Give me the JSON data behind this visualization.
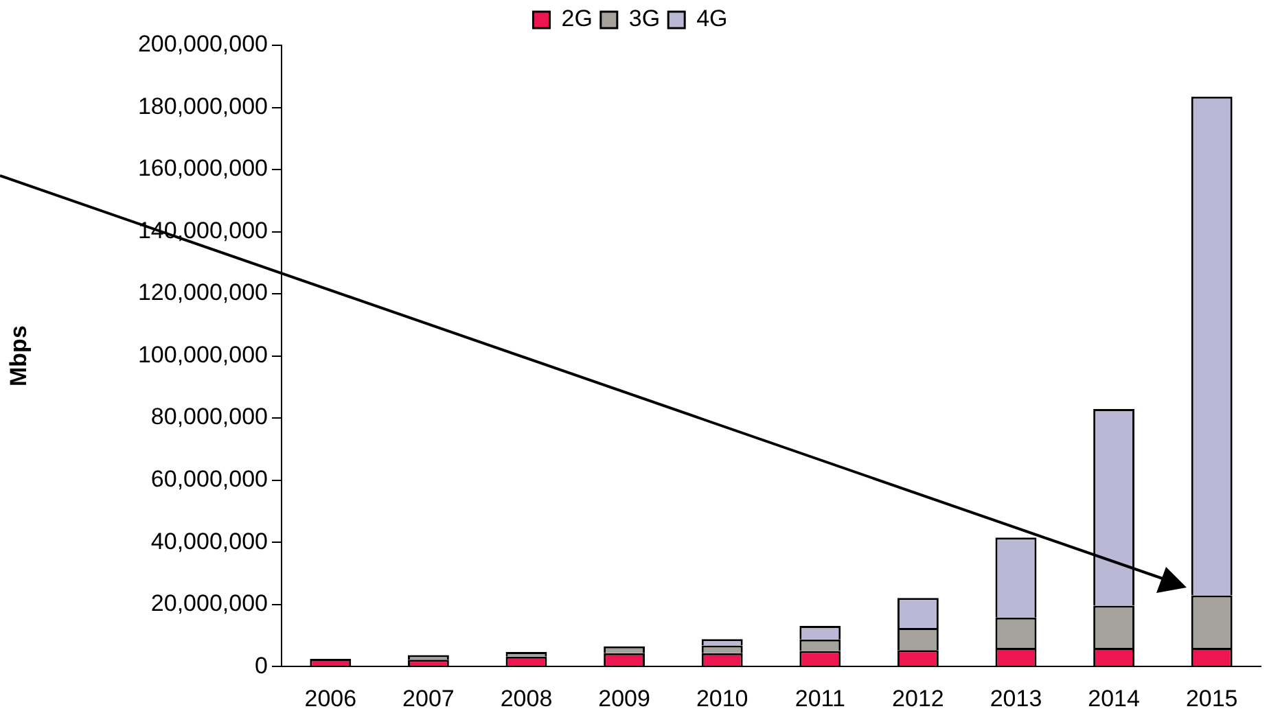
{
  "chart_data": {
    "type": "bar",
    "stacked": true,
    "ylabel": "Mbps",
    "categories": [
      "2006",
      "2007",
      "2008",
      "2009",
      "2010",
      "2011",
      "2012",
      "2013",
      "2014",
      "2015"
    ],
    "series": [
      {
        "name": "2G",
        "color": "#ee1651",
        "values": [
          2500000,
          2200000,
          3200000,
          4300000,
          4300000,
          5000000,
          5300000,
          6000000,
          6000000,
          6000000
        ]
      },
      {
        "name": "3G",
        "color": "#a5a29b",
        "values": [
          null,
          1500000,
          1500000,
          2200000,
          2500000,
          3700000,
          7100000,
          9800000,
          13600000,
          16900000
        ]
      },
      {
        "name": "4G",
        "color": "#bbb8d6",
        "values": [
          null,
          null,
          null,
          null,
          2000000,
          4400000,
          9700000,
          25700000,
          63300000,
          160600000
        ]
      }
    ],
    "ylim": [
      0,
      200000000
    ],
    "yticks": [
      0,
      {
        "value": 20000000,
        "label": "20,000,000"
      },
      {
        "value": 40000000,
        "label": "40,000,000"
      },
      {
        "value": 60000000,
        "label": "60,000,000"
      },
      {
        "value": 80000000,
        "label": "80,000,000"
      },
      {
        "value": 100000000,
        "label": "100,000,000"
      },
      {
        "value": 120000000,
        "label": "120,000,000"
      },
      {
        "value": 140000000,
        "label": "140,000,000"
      },
      {
        "value": 160000000,
        "label": "160,000,000"
      },
      {
        "value": 180000000,
        "label": "180,000,000"
      },
      {
        "value": 200000000,
        "label": "200,000,000"
      }
    ],
    "grid": false,
    "legend": "top"
  }
}
